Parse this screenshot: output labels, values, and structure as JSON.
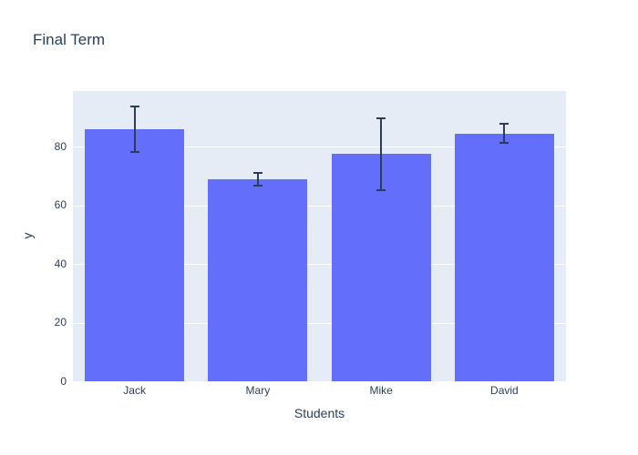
{
  "chart_data": {
    "type": "bar",
    "title": "Final Term",
    "xlabel": "Students",
    "ylabel": "y",
    "categories": [
      "Jack",
      "Mary",
      "Mike",
      "David"
    ],
    "values": [
      86,
      69,
      77.5,
      84.5
    ],
    "error_y": [
      8,
      2.5,
      12.5,
      3.5
    ],
    "yticks": [
      0,
      20,
      40,
      60,
      80
    ],
    "ylim": [
      0,
      99
    ],
    "grid": true,
    "legend": "none",
    "colors": {
      "bar_fill": "#636efa",
      "plot_background": "#e5ecf6",
      "gridline": "#ffffff",
      "error_bar": "#2e3d57",
      "text": "#2a3f5f",
      "page_background": "#ffffff"
    }
  }
}
